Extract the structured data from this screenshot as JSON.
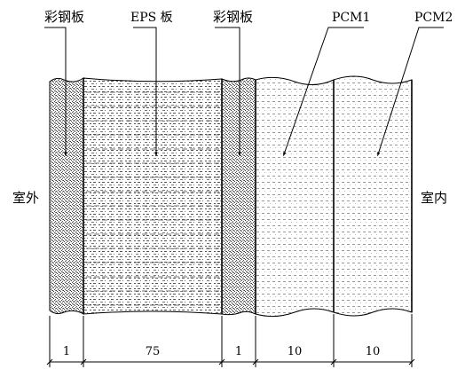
{
  "diagram": {
    "top_labels": {
      "steel_left": "彩钢板",
      "eps": "EPS 板",
      "steel_right": "彩钢板",
      "pcm1": "PCM1",
      "pcm2": "PCM2"
    },
    "side_labels": {
      "outdoor": "室外",
      "indoor": "室内"
    },
    "dimensions": [
      "1",
      "75",
      "1",
      "10",
      "10"
    ]
  }
}
